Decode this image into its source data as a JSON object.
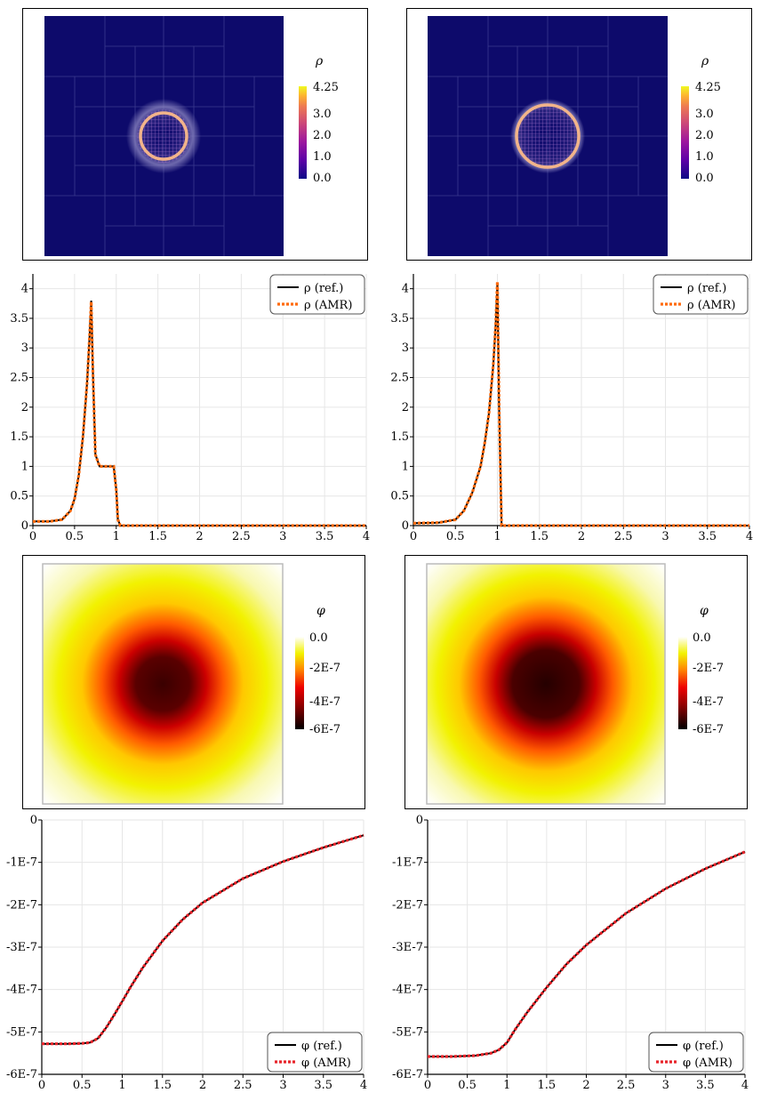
{
  "colors": {
    "plasma": [
      "#0d0887",
      "#5c01a6",
      "#9c179e",
      "#cc4778",
      "#ed7953",
      "#fdb42f",
      "#f0f921"
    ],
    "hot": [
      "#000000",
      "#7a0000",
      "#e60000",
      "#ff6a00",
      "#ffd200",
      "#f5f500",
      "#ffffff"
    ],
    "ref_line": "#000000",
    "rho_amr": "#ff6a0d",
    "phi_amr": "#e8242a",
    "grid": "#e6e6e6"
  },
  "density_maps": [
    {
      "colorbar": {
        "symbol": "ρ",
        "ticks": [
          "4.25",
          "3.0",
          "2.0",
          "1.0",
          "0.0"
        ]
      }
    },
    {
      "colorbar": {
        "symbol": "ρ",
        "ticks": [
          "4.25",
          "3.0",
          "2.0",
          "1.0",
          "0.0"
        ]
      }
    }
  ],
  "potential_maps": [
    {
      "colorbar": {
        "symbol": "φ",
        "ticks": [
          "0.0",
          "-2E-7",
          "-4E-7",
          "-6E-7"
        ]
      }
    },
    {
      "colorbar": {
        "symbol": "φ",
        "ticks": [
          "0.0",
          "-2E-7",
          "-4E-7",
          "-6E-7"
        ]
      }
    }
  ],
  "chart_data": [
    {
      "type": "line",
      "xlabel": "",
      "ylabel": "",
      "xlim": [
        0,
        4
      ],
      "ylim": [
        0,
        4.25
      ],
      "xticks": [
        "0",
        "0.5",
        "1",
        "1.5",
        "2",
        "2.5",
        "3",
        "3.5",
        "4"
      ],
      "yticks": [
        "0",
        "0.5",
        "1",
        "1.5",
        "2",
        "2.5",
        "3",
        "3.5",
        "4"
      ],
      "legend_position": "top-right",
      "series": [
        {
          "name": "ρ (ref.)",
          "style": "solid",
          "x": [
            0,
            0.2,
            0.35,
            0.45,
            0.5,
            0.55,
            0.6,
            0.65,
            0.68,
            0.7,
            0.72,
            0.75,
            0.8,
            0.9,
            0.97,
            1.0,
            1.02,
            1.05,
            1.5,
            2,
            3,
            4
          ],
          "y": [
            0.07,
            0.07,
            0.1,
            0.25,
            0.45,
            0.85,
            1.5,
            2.4,
            3.2,
            3.8,
            2.6,
            1.2,
            1.0,
            1.0,
            1.0,
            0.6,
            0.1,
            0.0,
            0.0,
            0.0,
            0.0,
            0.0
          ]
        },
        {
          "name": "ρ (AMR)",
          "style": "dotted",
          "x": [
            0,
            0.2,
            0.35,
            0.45,
            0.5,
            0.55,
            0.6,
            0.65,
            0.68,
            0.7,
            0.72,
            0.75,
            0.8,
            0.9,
            0.97,
            1.0,
            1.02,
            1.05,
            1.5,
            2,
            3,
            4
          ],
          "y": [
            0.07,
            0.07,
            0.1,
            0.25,
            0.45,
            0.85,
            1.5,
            2.4,
            3.2,
            3.78,
            2.6,
            1.2,
            1.0,
            1.0,
            1.0,
            0.6,
            0.1,
            0.0,
            0.0,
            0.0,
            0.0,
            0.0
          ]
        }
      ]
    },
    {
      "type": "line",
      "xlabel": "",
      "ylabel": "",
      "xlim": [
        0,
        4
      ],
      "ylim": [
        0,
        4.25
      ],
      "xticks": [
        "0",
        "0.5",
        "1",
        "1.5",
        "2",
        "2.5",
        "3",
        "3.5",
        "4"
      ],
      "yticks": [
        "0",
        "0.5",
        "1",
        "1.5",
        "2",
        "2.5",
        "3",
        "3.5",
        "4"
      ],
      "legend_position": "top-right",
      "series": [
        {
          "name": "ρ (ref.)",
          "style": "solid",
          "x": [
            0,
            0.3,
            0.5,
            0.6,
            0.7,
            0.8,
            0.85,
            0.9,
            0.95,
            0.98,
            1.0,
            1.02,
            1.05,
            1.5,
            2,
            3,
            4
          ],
          "y": [
            0.04,
            0.05,
            0.1,
            0.25,
            0.55,
            1.0,
            1.4,
            1.9,
            2.7,
            3.4,
            4.1,
            2.0,
            0.0,
            0.0,
            0.0,
            0.0,
            0.0
          ]
        },
        {
          "name": "ρ (AMR)",
          "style": "dotted",
          "x": [
            0,
            0.3,
            0.5,
            0.6,
            0.7,
            0.8,
            0.85,
            0.9,
            0.95,
            0.98,
            1.0,
            1.02,
            1.05,
            1.5,
            2,
            3,
            4
          ],
          "y": [
            0.04,
            0.05,
            0.1,
            0.25,
            0.55,
            1.0,
            1.4,
            1.9,
            2.7,
            3.4,
            4.12,
            2.0,
            0.0,
            0.0,
            0.0,
            0.0,
            0.0
          ]
        }
      ]
    },
    {
      "type": "line",
      "xlabel": "",
      "ylabel": "",
      "xlim": [
        0,
        4
      ],
      "ylim": [
        -6e-07,
        0
      ],
      "xticks": [
        "0",
        "0.5",
        "1",
        "1.5",
        "2",
        "2.5",
        "3",
        "3.5",
        "4"
      ],
      "yticks": [
        "0",
        "-1E-7",
        "-2E-7",
        "-3E-7",
        "-4E-7",
        "-5E-7",
        "-6E-7"
      ],
      "legend_position": "bottom-right",
      "series": [
        {
          "name": "φ (ref.)",
          "style": "solid",
          "x": [
            0,
            0.3,
            0.5,
            0.6,
            0.7,
            0.8,
            0.9,
            1.0,
            1.1,
            1.25,
            1.5,
            1.75,
            2.0,
            2.5,
            3.0,
            3.5,
            4.0
          ],
          "y": [
            -5.28e-07,
            -5.28e-07,
            -5.27e-07,
            -5.25e-07,
            -5.15e-07,
            -4.9e-07,
            -4.6e-07,
            -4.28e-07,
            -3.95e-07,
            -3.5e-07,
            -2.85e-07,
            -2.35e-07,
            -1.95e-07,
            -1.38e-07,
            -9.8e-08,
            -6.5e-08,
            -3.6e-08
          ]
        },
        {
          "name": "φ (AMR)",
          "style": "dotted",
          "x": [
            0,
            0.3,
            0.5,
            0.6,
            0.7,
            0.8,
            0.9,
            1.0,
            1.1,
            1.25,
            1.5,
            1.75,
            2.0,
            2.5,
            3.0,
            3.5,
            4.0
          ],
          "y": [
            -5.28e-07,
            -5.28e-07,
            -5.27e-07,
            -5.25e-07,
            -5.15e-07,
            -4.9e-07,
            -4.6e-07,
            -4.28e-07,
            -3.95e-07,
            -3.5e-07,
            -2.85e-07,
            -2.35e-07,
            -1.95e-07,
            -1.38e-07,
            -9.8e-08,
            -6.5e-08,
            -3.6e-08
          ]
        }
      ]
    },
    {
      "type": "line",
      "xlabel": "",
      "ylabel": "",
      "xlim": [
        0,
        4
      ],
      "ylim": [
        -6e-07,
        0
      ],
      "xticks": [
        "0",
        "0.5",
        "1",
        "1.5",
        "2",
        "2.5",
        "3",
        "3.5",
        "4"
      ],
      "yticks": [
        "0",
        "-1E-7",
        "-2E-7",
        "-3E-7",
        "-4E-7",
        "-5E-7",
        "-6E-7"
      ],
      "legend_position": "bottom-right",
      "series": [
        {
          "name": "φ (ref.)",
          "style": "solid",
          "x": [
            0,
            0.3,
            0.6,
            0.8,
            0.9,
            1.0,
            1.1,
            1.25,
            1.5,
            1.75,
            2.0,
            2.5,
            3.0,
            3.5,
            4.0
          ],
          "y": [
            -5.58e-07,
            -5.58e-07,
            -5.56e-07,
            -5.5e-07,
            -5.42e-07,
            -5.25e-07,
            -4.95e-07,
            -4.55e-07,
            -3.95e-07,
            -3.4e-07,
            -2.95e-07,
            -2.2e-07,
            -1.62e-07,
            -1.15e-07,
            -7.5e-08
          ]
        },
        {
          "name": "φ (AMR)",
          "style": "dotted",
          "x": [
            0,
            0.3,
            0.6,
            0.8,
            0.9,
            1.0,
            1.1,
            1.25,
            1.5,
            1.75,
            2.0,
            2.5,
            3.0,
            3.5,
            4.0
          ],
          "y": [
            -5.58e-07,
            -5.58e-07,
            -5.56e-07,
            -5.5e-07,
            -5.42e-07,
            -5.25e-07,
            -4.95e-07,
            -4.55e-07,
            -3.95e-07,
            -3.4e-07,
            -2.95e-07,
            -2.2e-07,
            -1.62e-07,
            -1.15e-07,
            -7.5e-08
          ]
        }
      ]
    }
  ]
}
